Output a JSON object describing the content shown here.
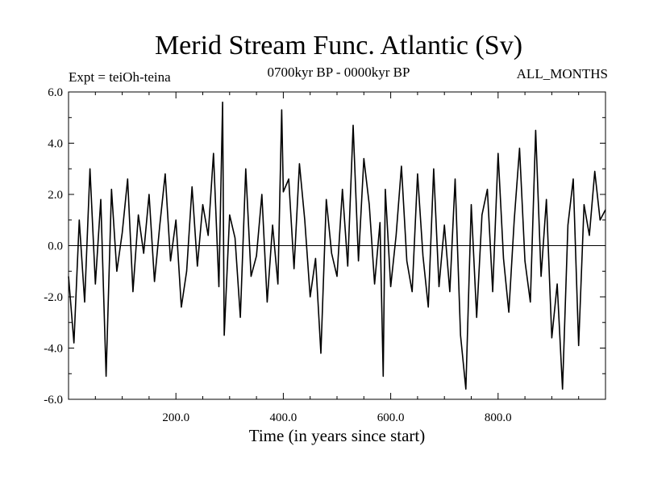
{
  "chart_data": {
    "type": "line",
    "title": "Merid Stream Func. Atlantic (Sv)",
    "subtitle_left": "Expt = teiOh-teina",
    "subtitle_center": "0700kyr BP - 0000kyr BP",
    "subtitle_right": "ALL_MONTHS",
    "xlabel": "Time (in years since start)",
    "ylabel": "",
    "xlim": [
      0,
      1000
    ],
    "ylim": [
      -6,
      6
    ],
    "xticks": [
      200,
      400,
      600,
      800
    ],
    "xtick_labels": [
      "200.0",
      "400.0",
      "600.0",
      "800.0"
    ],
    "yticks": [
      -6,
      -4,
      -2,
      0,
      2,
      4,
      6
    ],
    "ytick_labels": [
      "-6.0",
      "-4.0",
      "-2.0",
      "0.0",
      "2.0",
      "4.0",
      "6.0"
    ],
    "zero_line": true,
    "grid": false,
    "series": [
      {
        "x": [
          0,
          10,
          20,
          30,
          40,
          50,
          60,
          70,
          80,
          90,
          100,
          110,
          120,
          130,
          140,
          150,
          160,
          170,
          180,
          190,
          200,
          210,
          220,
          230,
          240,
          250,
          260,
          270,
          280,
          287,
          290,
          300,
          310,
          320,
          330,
          340,
          350,
          360,
          370,
          380,
          390,
          397,
          400,
          410,
          420,
          430,
          440,
          450,
          460,
          470,
          480,
          490,
          500,
          510,
          520,
          530,
          540,
          550,
          560,
          570,
          580,
          586,
          590,
          600,
          610,
          620,
          630,
          640,
          650,
          660,
          670,
          680,
          690,
          700,
          710,
          720,
          730,
          740,
          750,
          760,
          770,
          780,
          790,
          800,
          810,
          820,
          830,
          840,
          850,
          860,
          870,
          880,
          890,
          900,
          910,
          920,
          930,
          940,
          950,
          960,
          970,
          980,
          990,
          1000
        ],
        "y": [
          -1.2,
          -3.8,
          1.0,
          -2.2,
          3.0,
          -1.5,
          1.8,
          -5.1,
          2.2,
          -1.0,
          0.5,
          2.6,
          -1.8,
          1.2,
          -0.3,
          2.0,
          -1.4,
          0.8,
          2.8,
          -0.6,
          1.0,
          -2.4,
          -1.0,
          2.3,
          -0.8,
          1.6,
          0.4,
          3.6,
          -1.6,
          5.6,
          -3.5,
          1.2,
          0.3,
          -2.8,
          3.0,
          -1.2,
          -0.4,
          2.0,
          -2.2,
          0.8,
          -1.5,
          5.3,
          2.1,
          2.6,
          -0.9,
          3.2,
          1.0,
          -2.0,
          -0.5,
          -4.2,
          1.8,
          -0.3,
          -1.2,
          2.2,
          -0.8,
          4.7,
          -0.6,
          3.4,
          1.6,
          -1.5,
          0.9,
          -5.1,
          2.2,
          -1.6,
          0.4,
          3.1,
          -0.6,
          -1.8,
          2.8,
          -0.4,
          -2.4,
          3.0,
          -1.6,
          0.8,
          -1.8,
          2.6,
          -3.5,
          -5.6,
          1.6,
          -2.8,
          1.2,
          2.2,
          -1.8,
          3.6,
          -0.5,
          -2.6,
          1.0,
          3.8,
          -0.6,
          -2.2,
          4.5,
          -1.2,
          1.8,
          -3.6,
          -1.5,
          -5.6,
          0.8,
          2.6,
          -3.9,
          1.6,
          0.4,
          2.9,
          1.0,
          1.4
        ]
      }
    ]
  }
}
